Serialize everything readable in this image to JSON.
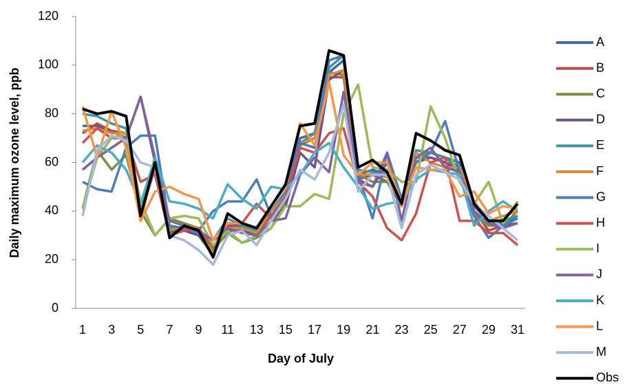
{
  "chart_data": {
    "type": "line",
    "y_label": "Daily maximum ozone level, ppb",
    "x_label": "Day of July",
    "categories": [
      "1",
      null,
      "3",
      null,
      "5",
      null,
      "7",
      null,
      "9",
      null,
      "11",
      null,
      "13",
      null,
      "15",
      null,
      "17",
      null,
      "19",
      null,
      "21",
      null,
      "23",
      null,
      "25",
      null,
      "27",
      null,
      "29",
      null,
      "31"
    ],
    "ylim": [
      0,
      120
    ],
    "yticks": [
      0,
      20,
      40,
      60,
      80,
      100,
      120
    ],
    "series": [
      {
        "name": "A",
        "color": "#3C6AA8",
        "values": [
          75,
          75,
          73,
          70,
          38,
          60,
          31,
          33,
          30,
          22,
          35,
          34,
          32,
          40,
          48,
          70,
          72,
          97,
          102,
          55,
          57,
          55,
          45,
          65,
          64,
          62,
          60,
          42,
          36,
          35,
          38
        ]
      },
      {
        "name": "B",
        "color": "#B84A48",
        "values": [
          72,
          76,
          73,
          72,
          38,
          58,
          30,
          32,
          31,
          22,
          34,
          33,
          31,
          38,
          46,
          68,
          66,
          95,
          95,
          53,
          55,
          52,
          43,
          62,
          62,
          60,
          58,
          40,
          32,
          34,
          35
        ]
      },
      {
        "name": "C",
        "color": "#76923C",
        "values": [
          41,
          65,
          57,
          63,
          40,
          30,
          37,
          35,
          33,
          24,
          31,
          27,
          29,
          33,
          44,
          67,
          70,
          97,
          96,
          55,
          52,
          52,
          42,
          62,
          64,
          62,
          57,
          38,
          34,
          34,
          40
        ]
      },
      {
        "name": "D",
        "color": "#6A5290",
        "values": [
          57,
          62,
          66,
          70,
          87,
          60,
          32,
          32,
          30,
          28,
          32,
          32,
          30,
          36,
          42,
          64,
          58,
          94,
          98,
          53,
          50,
          60,
          45,
          60,
          62,
          60,
          56,
          40,
          35,
          34,
          35
        ]
      },
      {
        "name": "E",
        "color": "#3E93A8",
        "values": [
          80,
          79,
          76,
          74,
          42,
          58,
          33,
          33,
          31,
          28,
          37,
          34,
          32,
          40,
          48,
          68,
          72,
          99,
          104,
          57,
          56,
          54,
          44,
          65,
          64,
          62,
          58,
          40,
          35,
          36,
          38
        ]
      },
      {
        "name": "F",
        "color": "#D98B3A",
        "values": [
          73,
          74,
          72,
          72,
          36,
          60,
          32,
          34,
          33,
          25,
          33,
          33,
          31,
          40,
          46,
          68,
          70,
          96,
          98,
          55,
          55,
          54,
          42,
          64,
          60,
          58,
          58,
          44,
          36,
          38,
          40
        ]
      },
      {
        "name": "G",
        "color": "#4A7EBB",
        "values": [
          52,
          49,
          48,
          66,
          71,
          71,
          34,
          33,
          32,
          40,
          44,
          44,
          53,
          38,
          46,
          68,
          66,
          102,
          104,
          55,
          37,
          64,
          45,
          60,
          64,
          77,
          56,
          38,
          29,
          34,
          37
        ]
      },
      {
        "name": "H",
        "color": "#D0504D",
        "values": [
          68,
          74,
          70,
          70,
          52,
          55,
          30,
          32,
          33,
          25,
          35,
          35,
          43,
          37,
          46,
          66,
          64,
          72,
          74,
          52,
          46,
          33,
          28,
          39,
          60,
          62,
          36,
          36,
          31,
          31,
          26
        ]
      },
      {
        "name": "I",
        "color": "#9BBB59",
        "values": [
          41,
          62,
          70,
          72,
          44,
          30,
          37,
          38,
          37,
          26,
          32,
          27,
          30,
          33,
          42,
          42,
          47,
          45,
          80,
          92,
          58,
          57,
          52,
          52,
          83,
          70,
          52,
          43,
          52,
          35,
          44
        ]
      },
      {
        "name": "J",
        "color": "#8064A2",
        "values": [
          57,
          62,
          66,
          70,
          87,
          62,
          36,
          34,
          32,
          28,
          33,
          31,
          30,
          36,
          37,
          55,
          62,
          56,
          89,
          52,
          50,
          64,
          36,
          62,
          66,
          58,
          56,
          40,
          35,
          33,
          35
        ]
      },
      {
        "name": "K",
        "color": "#4BACC6",
        "values": [
          60,
          67,
          64,
          57,
          43,
          62,
          44,
          43,
          41,
          37,
          51,
          45,
          41,
          50,
          49,
          55,
          64,
          68,
          58,
          50,
          41,
          43,
          44,
          53,
          57,
          56,
          55,
          34,
          40,
          44,
          40
        ]
      },
      {
        "name": "L",
        "color": "#F79646",
        "values": [
          83,
          62,
          81,
          66,
          36,
          48,
          50,
          47,
          45,
          28,
          35,
          35,
          33,
          42,
          50,
          76,
          67,
          93,
          63,
          55,
          60,
          60,
          43,
          58,
          57,
          57,
          46,
          48,
          39,
          42,
          41
        ]
      },
      {
        "name": "M",
        "color": "#A6B8DC",
        "values": [
          38,
          65,
          71,
          69,
          60,
          58,
          30,
          28,
          24,
          18,
          30,
          32,
          26,
          36,
          45,
          57,
          53,
          64,
          84,
          48,
          55,
          55,
          33,
          55,
          59,
          56,
          53,
          43,
          38,
          33,
          28
        ]
      },
      {
        "name": "Obs",
        "color": "#000000",
        "values": [
          82,
          80,
          81,
          79,
          38,
          60,
          29,
          34,
          32,
          21,
          39,
          35,
          33,
          42,
          51,
          75,
          76,
          106,
          104,
          58,
          61,
          56,
          43,
          72,
          69,
          65,
          63,
          43,
          36,
          36,
          43
        ]
      }
    ]
  }
}
